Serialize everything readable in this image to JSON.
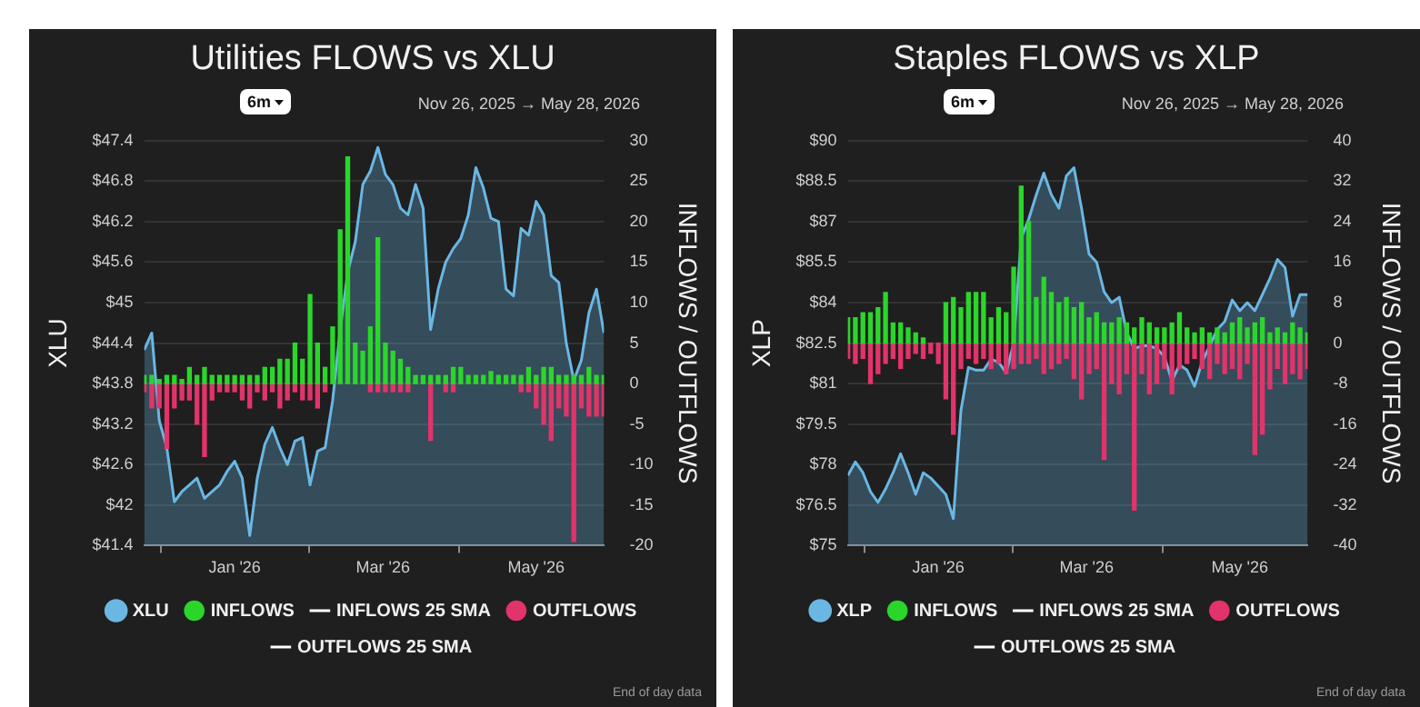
{
  "chart_data": [
    {
      "type": "bar",
      "title": "Utilities FLOWS vs XLU",
      "ylabel": "XLU",
      "y2label": "INFLOWS / OUTFLOWS",
      "annotations": [
        "6m",
        "Nov 26, 2025 → May 28, 2026",
        "End of day data"
      ],
      "x": [
        "2025-11-26",
        "2025-11-29",
        "2025-12-02",
        "2025-12-05",
        "2025-12-08",
        "2025-12-11",
        "2025-12-14",
        "2025-12-17",
        "2025-12-20",
        "2025-12-23",
        "2025-12-26",
        "2025-12-29",
        "2026-01-01",
        "2026-01-04",
        "2026-01-07",
        "2026-01-10",
        "2026-01-13",
        "2026-01-16",
        "2026-01-19",
        "2026-01-22",
        "2026-01-25",
        "2026-01-28",
        "2026-01-31",
        "2026-02-03",
        "2026-02-06",
        "2026-02-09",
        "2026-02-12",
        "2026-02-15",
        "2026-02-18",
        "2026-02-21",
        "2026-02-24",
        "2026-02-27",
        "2026-03-02",
        "2026-03-05",
        "2026-03-08",
        "2026-03-11",
        "2026-03-14",
        "2026-03-17",
        "2026-03-20",
        "2026-03-23",
        "2026-03-26",
        "2026-03-29",
        "2026-04-01",
        "2026-04-04",
        "2026-04-07",
        "2026-04-10",
        "2026-04-13",
        "2026-04-16",
        "2026-04-19",
        "2026-04-22",
        "2026-04-25",
        "2026-04-28",
        "2026-05-01",
        "2026-05-04",
        "2026-05-07",
        "2026-05-10",
        "2026-05-13",
        "2026-05-16",
        "2026-05-19",
        "2026-05-22",
        "2026-05-25",
        "2026-05-28"
      ],
      "xlim": [
        "2025-11-26",
        "2026-05-28"
      ],
      "xticks": [
        {
          "value": "2026-01-01",
          "label": "Jan '26"
        },
        {
          "value": "2026-03-01",
          "label": "Mar '26"
        },
        {
          "value": "2026-05-01",
          "label": "May '26"
        }
      ],
      "ylim": [
        41.4,
        47.4
      ],
      "yticks": [
        {
          "value": 41.4,
          "label": "$41.4"
        },
        {
          "value": 42,
          "label": "$42"
        },
        {
          "value": 42.6,
          "label": "$42.6"
        },
        {
          "value": 43.2,
          "label": "$43.2"
        },
        {
          "value": 43.8,
          "label": "$43.8"
        },
        {
          "value": 44.4,
          "label": "$44.4"
        },
        {
          "value": 45,
          "label": "$45"
        },
        {
          "value": 45.6,
          "label": "$45.6"
        },
        {
          "value": 46.2,
          "label": "$46.2"
        },
        {
          "value": 46.8,
          "label": "$46.8"
        },
        {
          "value": 47.4,
          "label": "$47.4"
        }
      ],
      "y2lim": [
        -20,
        30
      ],
      "y2ticks": [
        -20,
        -15,
        -10,
        -5,
        0,
        5,
        10,
        15,
        20,
        25,
        30
      ],
      "stacked": true,
      "grid": "y",
      "legend": "bottom",
      "marker": "none",
      "series": [
        {
          "name": "XLU",
          "type": "area",
          "color": "#6ab7e3",
          "values": [
            44.3,
            44.55,
            43.25,
            42.85,
            42.05,
            42.2,
            42.3,
            42.4,
            42.1,
            42.2,
            42.3,
            42.5,
            42.65,
            42.4,
            41.55,
            42.4,
            42.9,
            43.15,
            42.85,
            42.6,
            42.95,
            43.0,
            42.3,
            42.8,
            42.85,
            43.55,
            44.6,
            45.45,
            45.9,
            46.75,
            46.95,
            47.3,
            46.9,
            46.75,
            46.4,
            46.3,
            46.75,
            46.4,
            44.6,
            45.2,
            45.6,
            45.8,
            45.95,
            46.3,
            47.0,
            46.7,
            46.25,
            46.2,
            45.2,
            45.1,
            46.1,
            46.0,
            46.5,
            46.3,
            45.4,
            45.3,
            44.4,
            43.85,
            44.15,
            44.85,
            45.2,
            44.55
          ]
        },
        {
          "name": "INFLOWS",
          "axis": "y2",
          "color": "#2bd62b",
          "values": [
            1,
            1,
            0.5,
            1,
            1,
            0.5,
            2,
            1,
            2,
            1,
            1,
            1,
            1,
            1,
            1,
            1,
            2,
            2,
            3,
            3,
            5,
            3,
            11,
            5,
            2,
            7,
            19,
            28,
            5,
            4,
            7,
            18,
            5,
            4,
            3,
            2,
            1,
            1,
            1,
            1,
            1,
            2,
            2,
            1,
            1,
            1,
            1.5,
            1,
            1,
            1,
            1,
            2,
            1,
            2,
            2,
            1,
            1,
            1,
            1,
            2,
            1,
            1
          ]
        },
        {
          "name": "INFLOWS 25 SMA",
          "type": "line",
          "axis": "y2",
          "color": "#ffffff",
          "values": [
            null,
            null,
            null,
            null,
            null,
            null,
            null,
            null,
            null,
            null,
            null,
            null,
            null,
            null,
            null,
            null,
            null,
            null,
            null,
            null,
            null,
            null,
            null,
            null,
            null,
            null,
            null,
            null,
            null,
            null,
            null,
            null,
            null,
            null,
            null,
            null,
            null,
            null,
            null,
            null,
            null,
            null,
            null,
            null,
            null,
            null,
            null,
            null,
            null,
            null,
            null,
            null,
            null,
            null,
            null,
            null,
            null,
            null,
            null,
            null,
            null,
            null
          ]
        },
        {
          "name": "OUTFLOWS",
          "axis": "y2",
          "color": "#e2336b",
          "values": [
            -1,
            -3,
            -3,
            -8,
            -3,
            -2,
            -2,
            -5,
            -9,
            -2,
            -1,
            -1,
            -1,
            -2,
            -3,
            -1,
            -2,
            -1,
            -3,
            -2,
            -1,
            -2,
            -2,
            -3,
            -1,
            null,
            null,
            null,
            null,
            null,
            -1,
            -1,
            -1,
            -1,
            -1,
            -1,
            null,
            null,
            -7,
            null,
            -1,
            -1,
            null,
            null,
            null,
            null,
            null,
            null,
            null,
            null,
            -1,
            -1,
            -3,
            -5,
            -7,
            -3,
            -4,
            -19.5,
            -3,
            -4,
            -4,
            -4
          ]
        },
        {
          "name": "OUTFLOWS 25 SMA",
          "type": "line",
          "axis": "y2",
          "color": "#ffffff",
          "values": [
            null,
            null,
            null,
            null,
            null,
            null,
            null,
            null,
            null,
            null,
            null,
            null,
            null,
            null,
            null,
            null,
            null,
            null,
            null,
            null,
            null,
            null,
            null,
            null,
            null,
            null,
            null,
            null,
            null,
            null,
            null,
            null,
            null,
            null,
            null,
            null,
            null,
            null,
            null,
            null,
            null,
            null,
            null,
            null,
            null,
            null,
            null,
            null,
            null,
            null,
            null,
            null,
            null,
            null,
            null,
            null,
            null,
            null,
            null,
            null,
            null,
            null
          ]
        }
      ]
    },
    {
      "type": "bar",
      "title": "Staples FLOWS vs XLP",
      "ylabel": "XLP",
      "y2label": "INFLOWS / OUTFLOWS",
      "annotations": [
        "6m",
        "Nov 26, 2025 → May 28, 2026",
        "End of day data"
      ],
      "x": [
        "2025-11-26",
        "2025-11-29",
        "2025-12-02",
        "2025-12-05",
        "2025-12-08",
        "2025-12-11",
        "2025-12-14",
        "2025-12-17",
        "2025-12-20",
        "2025-12-23",
        "2025-12-26",
        "2025-12-29",
        "2026-01-01",
        "2026-01-04",
        "2026-01-07",
        "2026-01-10",
        "2026-01-13",
        "2026-01-16",
        "2026-01-19",
        "2026-01-22",
        "2026-01-25",
        "2026-01-28",
        "2026-01-31",
        "2026-02-03",
        "2026-02-06",
        "2026-02-09",
        "2026-02-12",
        "2026-02-15",
        "2026-02-18",
        "2026-02-21",
        "2026-02-24",
        "2026-02-27",
        "2026-03-02",
        "2026-03-05",
        "2026-03-08",
        "2026-03-11",
        "2026-03-14",
        "2026-03-17",
        "2026-03-20",
        "2026-03-23",
        "2026-03-26",
        "2026-03-29",
        "2026-04-01",
        "2026-04-04",
        "2026-04-07",
        "2026-04-10",
        "2026-04-13",
        "2026-04-16",
        "2026-04-19",
        "2026-04-22",
        "2026-04-25",
        "2026-04-28",
        "2026-05-01",
        "2026-05-04",
        "2026-05-07",
        "2026-05-10",
        "2026-05-13",
        "2026-05-16",
        "2026-05-19",
        "2026-05-22",
        "2026-05-25",
        "2026-05-28"
      ],
      "xlim": [
        "2025-11-26",
        "2026-05-28"
      ],
      "xticks": [
        {
          "value": "2026-01-01",
          "label": "Jan '26"
        },
        {
          "value": "2026-03-01",
          "label": "Mar '26"
        },
        {
          "value": "2026-05-01",
          "label": "May '26"
        }
      ],
      "ylim": [
        75,
        90
      ],
      "yticks": [
        {
          "value": 75,
          "label": "$75"
        },
        {
          "value": 76.5,
          "label": "$76.5"
        },
        {
          "value": 78,
          "label": "$78"
        },
        {
          "value": 79.5,
          "label": "$79.5"
        },
        {
          "value": 81,
          "label": "$81"
        },
        {
          "value": 82.5,
          "label": "$82.5"
        },
        {
          "value": 84,
          "label": "$84"
        },
        {
          "value": 85.5,
          "label": "$85.5"
        },
        {
          "value": 87,
          "label": "$87"
        },
        {
          "value": 88.5,
          "label": "$88.5"
        },
        {
          "value": 90,
          "label": "$90"
        }
      ],
      "y2lim": [
        -40,
        40
      ],
      "y2ticks": [
        -40,
        -32,
        -24,
        -16,
        -8,
        0,
        8,
        16,
        24,
        32,
        40
      ],
      "stacked": true,
      "grid": "y",
      "legend": "bottom",
      "marker": "none",
      "series": [
        {
          "name": "XLP",
          "type": "area",
          "color": "#6ab7e3",
          "values": [
            77.6,
            78.1,
            77.7,
            77.0,
            76.6,
            77.1,
            77.7,
            78.4,
            77.7,
            76.9,
            77.7,
            77.5,
            77.2,
            76.9,
            76.0,
            80.0,
            81.6,
            81.5,
            81.5,
            81.9,
            81.8,
            81.4,
            82.5,
            86.4,
            87.1,
            88.0,
            88.8,
            88.0,
            87.5,
            88.7,
            89.0,
            87.5,
            85.8,
            85.5,
            84.4,
            84.0,
            84.2,
            82.9,
            82.3,
            82.4,
            82.4,
            82.3,
            82.0,
            81.1,
            81.7,
            81.5,
            80.9,
            81.8,
            82.4,
            83.0,
            83.3,
            84.1,
            83.7,
            84.0,
            83.7,
            84.3,
            84.9,
            85.6,
            85.3,
            83.5,
            84.3,
            84.3
          ]
        },
        {
          "name": "INFLOWS",
          "axis": "y2",
          "color": "#2bd62b",
          "values": [
            5,
            5,
            6,
            6,
            7,
            10,
            4,
            4,
            3,
            2,
            1,
            null,
            null,
            8,
            9,
            7,
            10,
            10,
            10,
            5,
            7,
            6,
            15,
            31,
            24,
            9,
            13,
            10,
            8,
            9,
            7,
            8,
            5,
            6,
            4,
            4,
            5,
            4,
            3,
            5,
            4,
            3,
            3,
            4,
            6,
            3,
            2,
            3,
            2,
            3,
            2,
            4,
            5,
            3,
            4,
            5,
            2,
            3,
            2,
            4,
            3,
            2
          ]
        },
        {
          "name": "INFLOWS 25 SMA",
          "type": "line",
          "axis": "y2",
          "color": "#ffffff",
          "values": [
            null,
            null,
            null,
            null,
            null,
            null,
            null,
            null,
            null,
            null,
            null,
            null,
            null,
            null,
            null,
            null,
            null,
            null,
            null,
            null,
            null,
            null,
            null,
            null,
            null,
            null,
            null,
            null,
            null,
            null,
            null,
            null,
            null,
            null,
            null,
            null,
            null,
            null,
            null,
            null,
            null,
            null,
            null,
            null,
            null,
            null,
            null,
            null,
            null,
            null,
            null,
            null,
            null,
            null,
            null,
            null,
            null,
            null,
            null,
            null,
            null,
            null
          ]
        },
        {
          "name": "OUTFLOWS",
          "axis": "y2",
          "color": "#e2336b",
          "values": [
            -3,
            -4,
            -3,
            -8,
            -6,
            -4,
            -3,
            -5,
            -3,
            -2,
            -3,
            -2,
            -4,
            -11,
            -18,
            -5,
            -3,
            -4,
            -3,
            -5,
            -4,
            -6,
            -5,
            -4,
            -4,
            -3,
            -6,
            -5,
            -4,
            -3,
            -7,
            -11,
            -6,
            -5,
            -23,
            -8,
            -10,
            -6,
            -33,
            -6,
            -10,
            -8,
            -5,
            -10,
            -5,
            -4,
            -3,
            -5,
            -7,
            -4,
            -6,
            -5,
            -7,
            -4,
            -22,
            -18,
            -9,
            -5,
            -8,
            -6,
            -7,
            -5
          ]
        },
        {
          "name": "OUTFLOWS 25 SMA",
          "type": "line",
          "axis": "y2",
          "color": "#ffffff",
          "values": [
            null,
            null,
            null,
            null,
            null,
            null,
            null,
            null,
            null,
            null,
            null,
            null,
            null,
            null,
            null,
            null,
            null,
            null,
            null,
            null,
            null,
            null,
            null,
            null,
            null,
            null,
            null,
            null,
            null,
            null,
            null,
            null,
            null,
            null,
            null,
            null,
            null,
            null,
            null,
            null,
            null,
            null,
            null,
            null,
            null,
            null,
            null,
            null,
            null,
            null,
            null,
            null,
            null,
            null,
            null,
            null,
            null,
            null,
            null,
            null,
            null,
            null
          ]
        }
      ]
    }
  ]
}
